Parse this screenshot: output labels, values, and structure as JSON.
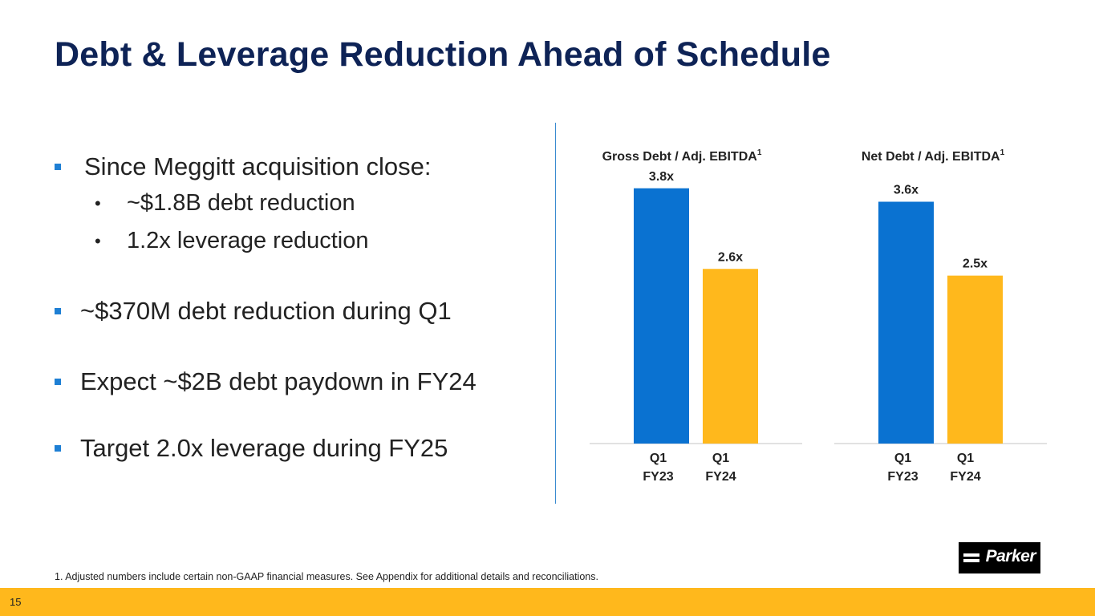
{
  "title": "Debt & Leverage Reduction Ahead of Schedule",
  "bullets": [
    {
      "text": "Since Meggitt acquisition close:",
      "subs": [
        "~$1.8B debt reduction",
        "1.2x leverage reduction"
      ]
    },
    {
      "text": "~$370M debt reduction during Q1"
    },
    {
      "text": "Expect ~$2B debt paydown in FY24"
    },
    {
      "text": "Target 2.0x leverage during FY25"
    }
  ],
  "chart_data": [
    {
      "type": "bar",
      "title": "Gross Debt / Adj. EBITDA",
      "title_sup": "1",
      "categories": [
        "Q1 FY23",
        "Q1 FY24"
      ],
      "category_lines": [
        [
          "Q1",
          "FY23"
        ],
        [
          "Q1",
          "FY24"
        ]
      ],
      "values": [
        3.8,
        2.6
      ],
      "labels": [
        "3.8x",
        "2.6x"
      ],
      "colors": [
        "#0a72d1",
        "#ffb81c"
      ],
      "ylim": [
        0,
        4
      ]
    },
    {
      "type": "bar",
      "title": "Net Debt / Adj. EBITDA",
      "title_sup": "1",
      "categories": [
        "Q1 FY23",
        "Q1 FY24"
      ],
      "category_lines": [
        [
          "Q1",
          "FY23"
        ],
        [
          "Q1",
          "FY24"
        ]
      ],
      "values": [
        3.6,
        2.5
      ],
      "labels": [
        "3.6x",
        "2.5x"
      ],
      "colors": [
        "#0a72d1",
        "#ffb81c"
      ],
      "ylim": [
        0,
        4
      ]
    }
  ],
  "footnote": "1. Adjusted numbers include certain non-GAAP financial measures. See Appendix for additional details and reconciliations.",
  "logo_text": "Parker",
  "page_number": "15",
  "colors": {
    "title": "#0e2356",
    "accent_blue": "#0a72d1",
    "accent_gold": "#ffb81c"
  }
}
